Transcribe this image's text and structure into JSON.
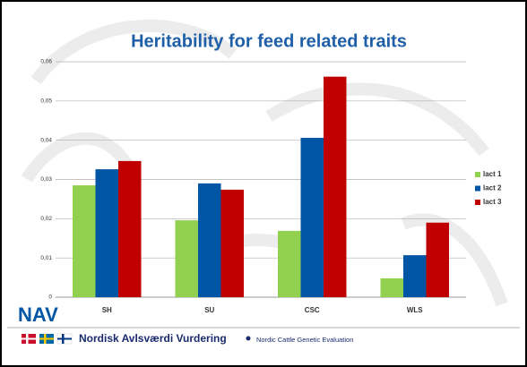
{
  "chart_data": {
    "type": "bar",
    "title": "Heritability for feed related traits",
    "categories": [
      "SH",
      "SU",
      "CSC",
      "WLS"
    ],
    "series": [
      {
        "name": "lact 1",
        "color": "#92d050",
        "values": [
          0.0285,
          0.0196,
          0.0169,
          0.0048
        ]
      },
      {
        "name": "lact 2",
        "color": "#0055a5",
        "values": [
          0.0326,
          0.029,
          0.0406,
          0.0107
        ]
      },
      {
        "name": "lact 3",
        "color": "#c00000",
        "values": [
          0.0347,
          0.0274,
          0.0562,
          0.019
        ]
      }
    ],
    "ylim": [
      0,
      0.06
    ],
    "yticks": [
      0,
      {
        "value": 0.01,
        "label": "0,01"
      },
      {
        "value": 0.02,
        "label": "0,02"
      },
      {
        "value": 0.03,
        "label": "0,03"
      },
      {
        "value": 0.04,
        "label": "0,04"
      },
      {
        "value": 0.05,
        "label": "0,05"
      },
      {
        "value": 0.06,
        "label": "0,06"
      }
    ],
    "grid": true,
    "legend": "right"
  },
  "footer": {
    "logo": "NAV",
    "organization": "Nordisk Avlsværdi Vurdering",
    "organization_en": "Nordic Cattle Genetic Evaluation"
  }
}
